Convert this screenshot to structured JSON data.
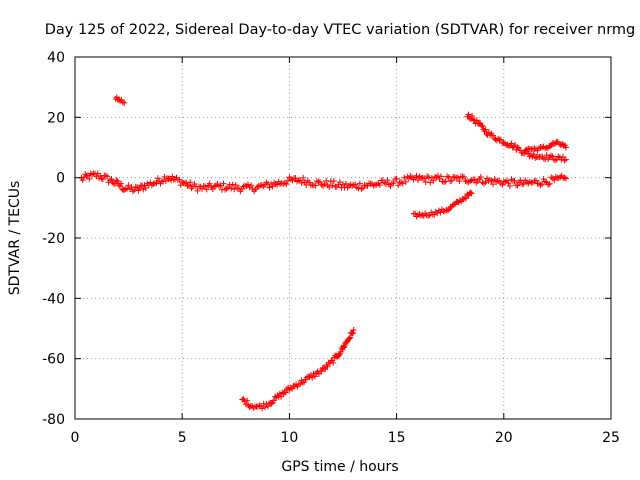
{
  "chart_data": {
    "type": "scatter",
    "title": "Day 125 of 2022, Sidereal Day-to-day VTEC variation (SDTVAR) for receiver nrmg",
    "xlabel": "GPS time / hours",
    "ylabel": "SDTVAR / TECUs",
    "xlim": [
      0,
      25
    ],
    "ylim": [
      -80,
      40
    ],
    "xticks": [
      0,
      5,
      10,
      15,
      20,
      25
    ],
    "yticks": [
      -80,
      -60,
      -40,
      -20,
      0,
      20,
      40
    ],
    "xtick_labels": [
      "0",
      "5",
      "10",
      "15",
      "20",
      "25"
    ],
    "ytick_labels": [
      "-80",
      "-60",
      "-40",
      "-20",
      "0",
      "20",
      "40"
    ],
    "grid": true,
    "marker": "plus",
    "series_color": "#ff0000",
    "series": [
      {
        "name": "main-band",
        "band": 1.2,
        "points": [
          [
            0.3,
            -0.5
          ],
          [
            0.6,
            0.3
          ],
          [
            1.0,
            0.8
          ],
          [
            1.3,
            0.2
          ],
          [
            1.7,
            -1.0
          ],
          [
            2.1,
            -2.5
          ],
          [
            2.3,
            -3.5
          ],
          [
            2.9,
            -4.0
          ],
          [
            3.3,
            -2.5
          ],
          [
            3.8,
            -1.5
          ],
          [
            4.3,
            0.3
          ],
          [
            4.6,
            -0.5
          ],
          [
            5.0,
            -1.5
          ],
          [
            5.5,
            -3.0
          ],
          [
            6.0,
            -3.5
          ],
          [
            6.5,
            -3.0
          ],
          [
            7.0,
            -3.0
          ],
          [
            7.5,
            -3.2
          ],
          [
            8.0,
            -3.5
          ],
          [
            8.5,
            -3.2
          ],
          [
            9.0,
            -2.5
          ],
          [
            9.5,
            -1.8
          ],
          [
            10.0,
            -1.0
          ],
          [
            10.5,
            -0.8
          ],
          [
            11.0,
            -1.5
          ],
          [
            11.5,
            -2.0
          ],
          [
            12.0,
            -2.2
          ],
          [
            12.5,
            -2.8
          ],
          [
            13.0,
            -2.8
          ],
          [
            13.5,
            -2.5
          ],
          [
            14.0,
            -2.2
          ],
          [
            14.5,
            -1.8
          ],
          [
            15.0,
            -1.5
          ],
          [
            15.5,
            -0.8
          ],
          [
            16.0,
            -0.3
          ],
          [
            16.5,
            -0.5
          ],
          [
            17.0,
            -0.5
          ],
          [
            17.5,
            -0.6
          ],
          [
            18.0,
            -0.4
          ],
          [
            18.5,
            -0.5
          ],
          [
            19.0,
            -0.8
          ],
          [
            19.5,
            -1.2
          ],
          [
            20.0,
            -1.5
          ],
          [
            20.5,
            -1.8
          ],
          [
            21.0,
            -2.0
          ],
          [
            21.5,
            -1.5
          ],
          [
            22.0,
            -1.2
          ],
          [
            22.5,
            -0.8
          ],
          [
            22.9,
            -0.3
          ]
        ]
      },
      {
        "name": "short-segment",
        "band": 0.6,
        "points": [
          [
            1.9,
            26.5
          ],
          [
            2.1,
            25.5
          ],
          [
            2.3,
            24.8
          ]
        ]
      },
      {
        "name": "descending-upper",
        "band": 0.8,
        "points": [
          [
            18.3,
            21.0
          ],
          [
            18.8,
            18.0
          ],
          [
            19.3,
            14.5
          ],
          [
            19.8,
            12.5
          ],
          [
            20.3,
            11.0
          ],
          [
            20.7,
            9.5
          ],
          [
            21.2,
            7.5
          ],
          [
            21.8,
            7.0
          ],
          [
            22.4,
            6.5
          ],
          [
            22.9,
            6.0
          ]
        ]
      },
      {
        "name": "upper-arc",
        "band": 0.6,
        "points": [
          [
            21.0,
            9.5
          ],
          [
            21.5,
            9.5
          ],
          [
            22.0,
            10.0
          ],
          [
            22.4,
            11.5
          ],
          [
            22.7,
            11.0
          ],
          [
            22.9,
            10.0
          ]
        ]
      },
      {
        "name": "rising-segment",
        "band": 0.6,
        "points": [
          [
            15.8,
            -12.5
          ],
          [
            16.4,
            -12.2
          ],
          [
            16.9,
            -11.5
          ],
          [
            17.4,
            -10.5
          ],
          [
            17.9,
            -8.0
          ],
          [
            18.3,
            -6.0
          ],
          [
            18.5,
            -5.2
          ]
        ]
      },
      {
        "name": "deep-arc",
        "band": 0.8,
        "points": [
          [
            7.8,
            -73.5
          ],
          [
            8.2,
            -75.5
          ],
          [
            8.6,
            -76.0
          ],
          [
            9.0,
            -75.0
          ],
          [
            9.5,
            -72.5
          ],
          [
            10.0,
            -70.0
          ],
          [
            10.5,
            -68.0
          ],
          [
            11.0,
            -66.0
          ],
          [
            11.5,
            -64.0
          ],
          [
            12.0,
            -61.0
          ],
          [
            12.4,
            -57.5
          ],
          [
            12.8,
            -53.0
          ],
          [
            13.0,
            -50.5
          ]
        ]
      }
    ]
  }
}
